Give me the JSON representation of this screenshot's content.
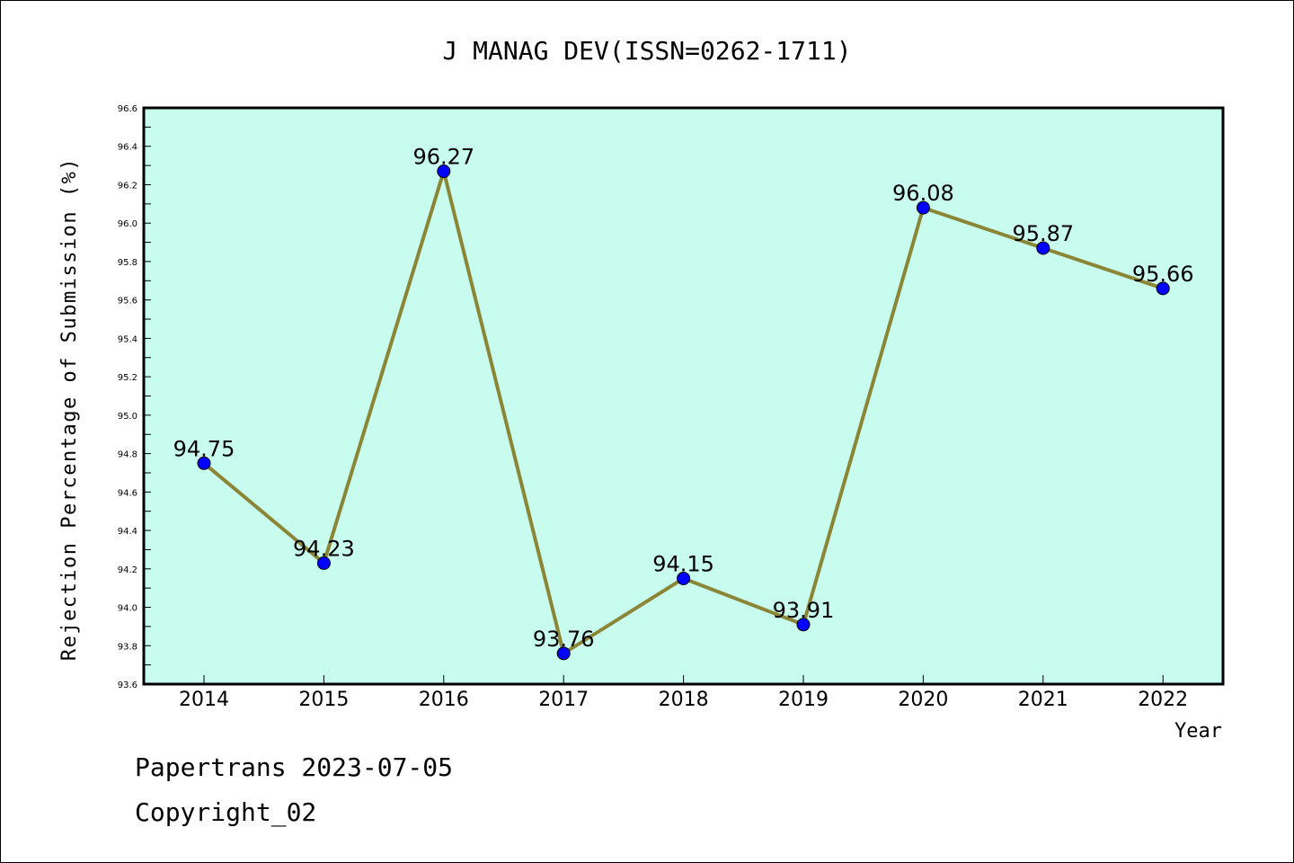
{
  "chart_data": {
    "type": "line",
    "title": "J MANAG DEV(ISSN=0262-1711)",
    "xlabel": "Year",
    "ylabel": "Rejection Percentage of Submission (%)",
    "categories": [
      "2014",
      "2015",
      "2016",
      "2017",
      "2018",
      "2019",
      "2020",
      "2021",
      "2022"
    ],
    "series": [
      {
        "values": [
          94.75,
          94.23,
          96.27,
          93.76,
          94.15,
          93.91,
          96.08,
          95.87,
          95.66
        ],
        "data_labels": [
          "94.75",
          "94.23",
          "96.27",
          "93.76",
          "94.15",
          "93.91",
          "96.08",
          "95.87",
          "95.66"
        ],
        "line_color": "#8b8536",
        "marker_color": "#0000ff"
      }
    ],
    "ylim": [
      93.6,
      96.6
    ],
    "yticks": [
      "93.6",
      "93.8",
      "94.0",
      "94.2",
      "94.4",
      "94.6",
      "94.8",
      "95.0",
      "95.2",
      "95.4",
      "95.6",
      "95.8",
      "96.0",
      "96.2",
      "96.4",
      "96.6"
    ],
    "plot_background": "#c8fcee",
    "grid": false,
    "legend": "none"
  },
  "footer": {
    "line1": "Papertrans 2023-07-05",
    "line2": "Copyright_02"
  }
}
